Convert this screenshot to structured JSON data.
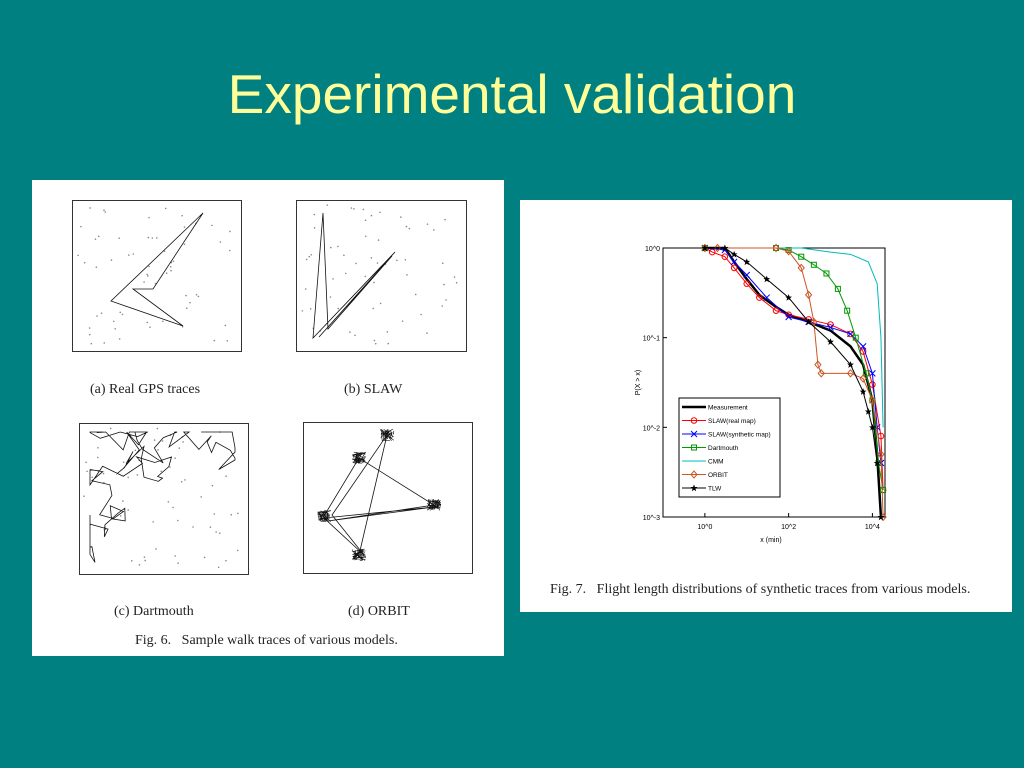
{
  "slide": {
    "title": "Experimental validation",
    "title_color": "#ffff99",
    "background": "#008080"
  },
  "left_figure": {
    "subfigures": [
      {
        "caption": "(a) Real GPS traces"
      },
      {
        "caption": "(b) SLAW"
      },
      {
        "caption": "(c) Dartmouth"
      },
      {
        "caption": "(d) ORBIT"
      }
    ],
    "caption": "Fig. 6.   Sample walk traces of various models."
  },
  "right_figure": {
    "caption": "Fig. 7.   Flight length distributions of synthetic traces from various models."
  },
  "chart_data": {
    "type": "line",
    "xlabel": "x (min)",
    "ylabel": "P(X > x)",
    "x_scale": "log",
    "y_scale": "log",
    "xlim": [
      0.1,
      20000
    ],
    "ylim": [
      0.001,
      1
    ],
    "x_ticks": [
      {
        "value": 1,
        "label": "10^0"
      },
      {
        "value": 100,
        "label": "10^2"
      },
      {
        "value": 10000,
        "label": "10^4"
      }
    ],
    "y_ticks": [
      {
        "value": 1,
        "label": "10^0"
      },
      {
        "value": 0.1,
        "label": "10^-1"
      },
      {
        "value": 0.01,
        "label": "10^-2"
      },
      {
        "value": 0.001,
        "label": "10^-3"
      }
    ],
    "legend_position": "bottom-left",
    "series": [
      {
        "name": "Measurement",
        "color": "#000000",
        "marker": "none",
        "x": [
          1,
          3,
          5,
          10,
          20,
          50,
          100,
          300,
          1000,
          3000,
          6000,
          10000,
          13000,
          16000
        ],
        "y": [
          1,
          1,
          0.7,
          0.45,
          0.3,
          0.22,
          0.18,
          0.15,
          0.12,
          0.08,
          0.05,
          0.02,
          0.005,
          0.001
        ]
      },
      {
        "name": "SLAW(real map)",
        "color": "#ff0000",
        "marker": "circle",
        "x": [
          1,
          1.5,
          3,
          5,
          10,
          20,
          50,
          100,
          300,
          1000,
          3000,
          6000,
          10000,
          16000,
          18000
        ],
        "y": [
          1,
          0.9,
          0.8,
          0.6,
          0.4,
          0.28,
          0.2,
          0.18,
          0.16,
          0.14,
          0.11,
          0.07,
          0.03,
          0.008,
          0.002
        ]
      },
      {
        "name": "SLAW(synthetic map)",
        "color": "#0000ff",
        "marker": "x",
        "x": [
          1,
          3,
          5,
          10,
          30,
          100,
          300,
          1000,
          3000,
          6000,
          10000,
          13000,
          16000
        ],
        "y": [
          1,
          0.95,
          0.7,
          0.5,
          0.28,
          0.17,
          0.15,
          0.13,
          0.11,
          0.08,
          0.04,
          0.01,
          0.004
        ]
      },
      {
        "name": "Dartmouth",
        "color": "#009900",
        "marker": "square",
        "x": [
          1,
          50,
          100,
          200,
          400,
          800,
          1500,
          2500,
          4000,
          7000,
          10000,
          14000,
          18000
        ],
        "y": [
          1,
          1,
          0.95,
          0.8,
          0.65,
          0.52,
          0.35,
          0.2,
          0.1,
          0.04,
          0.02,
          0.004,
          0.002
        ]
      },
      {
        "name": "CMM",
        "color": "#00bbbb",
        "marker": "none",
        "x": [
          1,
          200,
          1000,
          3000,
          8000,
          13000,
          16000,
          18000
        ],
        "y": [
          1,
          1,
          0.9,
          0.85,
          0.7,
          0.4,
          0.1,
          0.01
        ]
      },
      {
        "name": "ORBIT",
        "color": "#cc5522",
        "marker": "diamond",
        "x": [
          1,
          2,
          50,
          100,
          200,
          300,
          400,
          500,
          600,
          3000,
          6000,
          10000,
          16000,
          18000
        ],
        "y": [
          1,
          1,
          1,
          0.92,
          0.6,
          0.3,
          0.15,
          0.05,
          0.04,
          0.04,
          0.035,
          0.02,
          0.005,
          0.001
        ]
      },
      {
        "name": "TLW",
        "color": "#000000",
        "marker": "star",
        "x": [
          1,
          3,
          5,
          10,
          30,
          100,
          300,
          1000,
          3000,
          6000,
          8000,
          10000,
          13000,
          16000
        ],
        "y": [
          1,
          1,
          0.85,
          0.7,
          0.45,
          0.28,
          0.15,
          0.09,
          0.05,
          0.025,
          0.015,
          0.01,
          0.004,
          0.001
        ]
      }
    ]
  }
}
